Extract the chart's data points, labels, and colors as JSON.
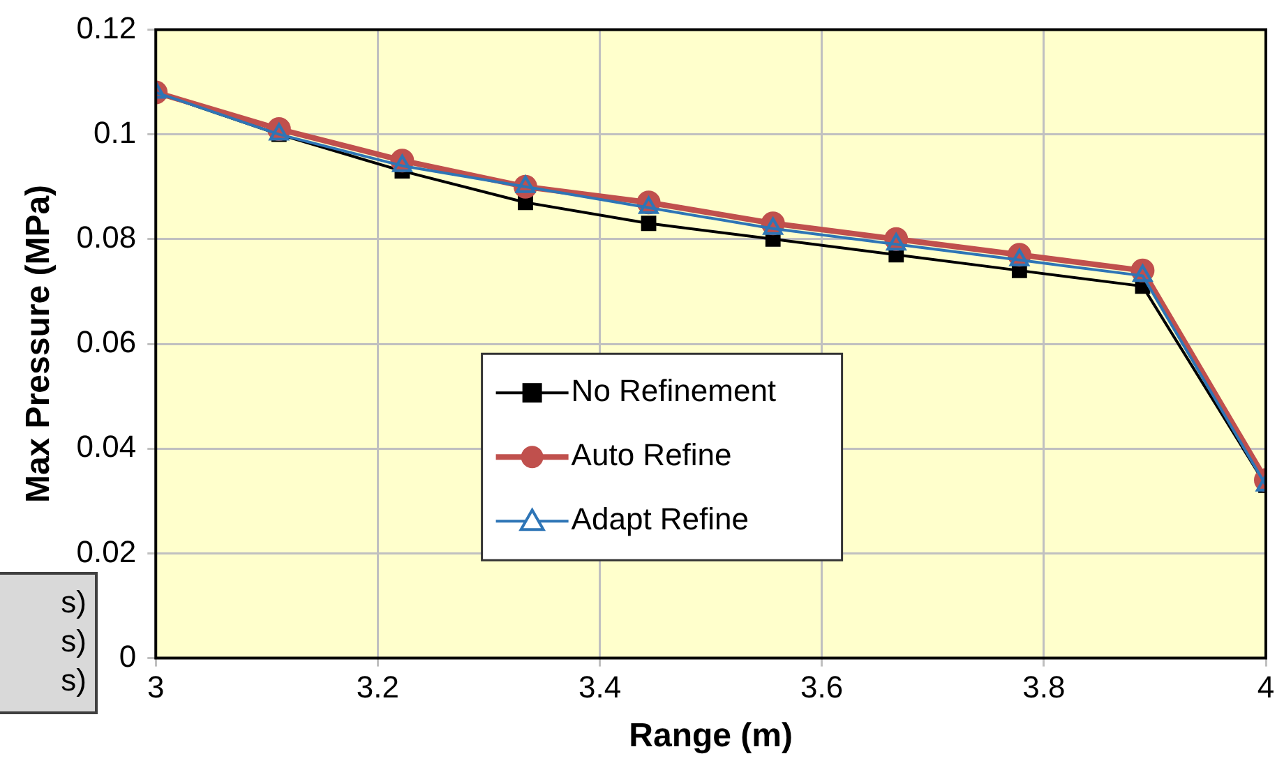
{
  "chart_data": {
    "type": "line",
    "xlabel": "Range (m)",
    "ylabel": "Max Pressure (MPa)",
    "x": [
      3,
      3.111,
      3.222,
      3.333,
      3.444,
      3.556,
      3.667,
      3.778,
      3.889,
      4
    ],
    "series": [
      {
        "name": "No Refinement",
        "color": "#000000",
        "marker": "square",
        "values": [
          0.108,
          0.1,
          0.093,
          0.087,
          0.083,
          0.08,
          0.077,
          0.074,
          0.071,
          0.033
        ]
      },
      {
        "name": "Auto Refine",
        "color": "#c0504d",
        "marker": "circle",
        "values": [
          0.108,
          0.101,
          0.095,
          0.09,
          0.087,
          0.083,
          0.08,
          0.077,
          0.074,
          0.034
        ]
      },
      {
        "name": "Adapt Refine",
        "color": "#2e75b6",
        "marker": "triangle",
        "values": [
          0.108,
          0.1,
          0.094,
          0.09,
          0.086,
          0.082,
          0.079,
          0.076,
          0.073,
          0.033
        ]
      }
    ],
    "xlim": [
      3,
      4
    ],
    "xticks": [
      3,
      3.2,
      3.4,
      3.6,
      3.8,
      4
    ],
    "ylim": [
      0,
      0.12
    ],
    "yticks": [
      0,
      0.02,
      0.04,
      0.06,
      0.08,
      0.1,
      0.12
    ],
    "grid": true,
    "legend": "center",
    "annotations": [
      "s)",
      "s)",
      "s)"
    ]
  }
}
